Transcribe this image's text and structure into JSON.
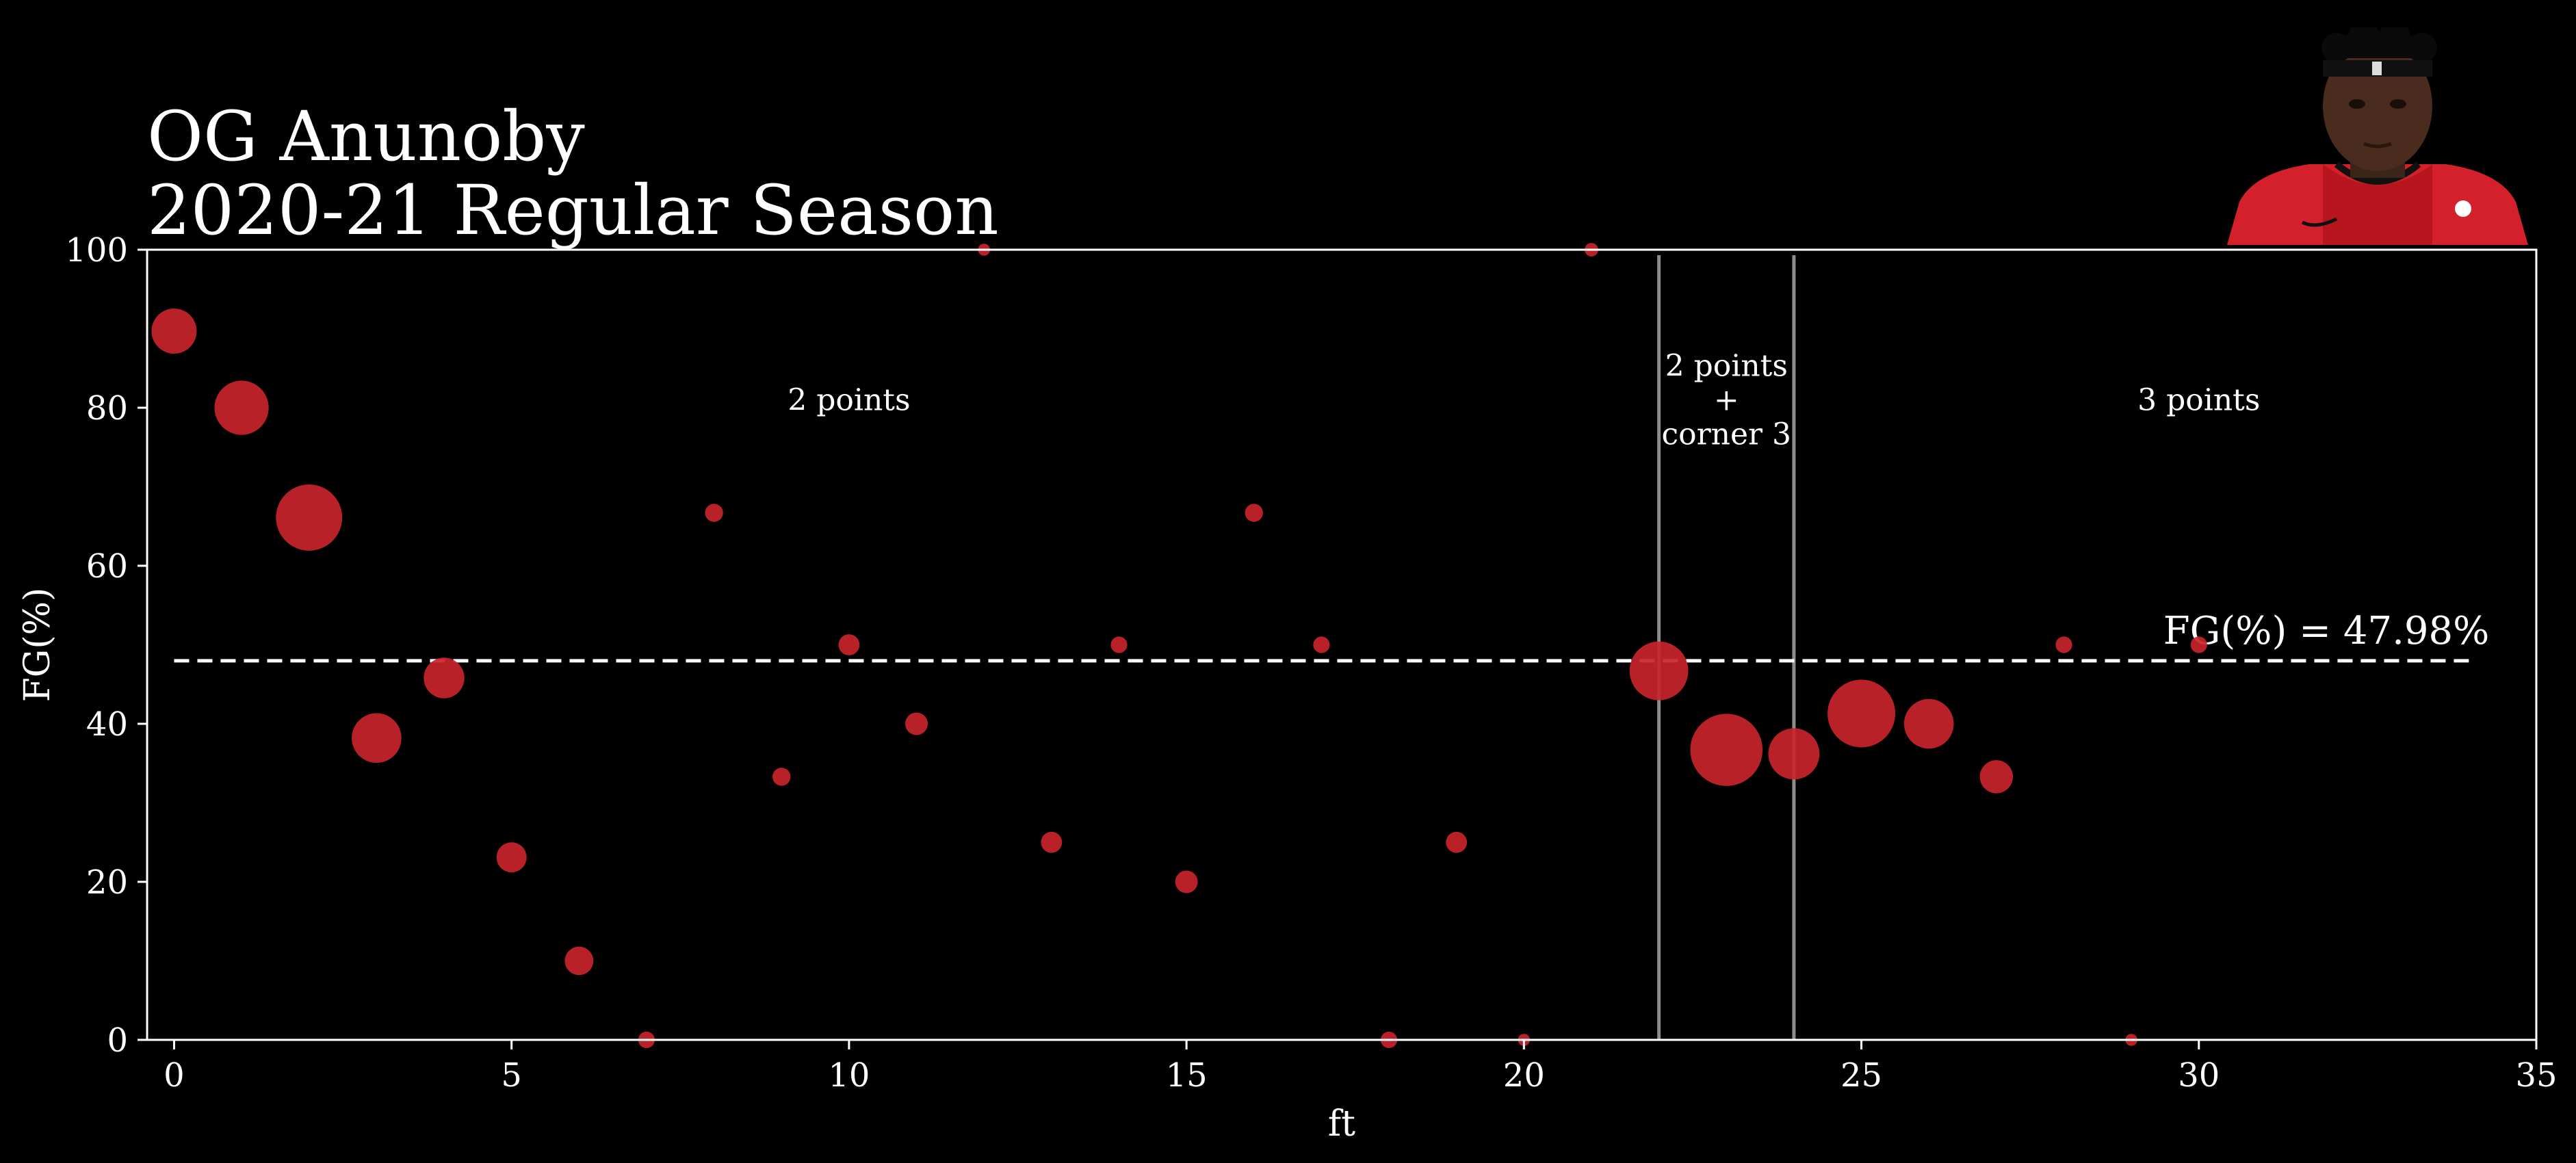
{
  "header": {
    "title_line1": "OG Anunoby",
    "title_line2": "2020-21 Regular Season"
  },
  "chart_data": {
    "type": "scatter",
    "title": "OG Anunoby 2020-21 Regular Season",
    "xlabel": "ft",
    "ylabel": "FG(%)",
    "xlim": [
      -0.4,
      35
    ],
    "ylim": [
      0,
      100
    ],
    "x_ticks": [
      0,
      5,
      10,
      15,
      20,
      25,
      30,
      35
    ],
    "y_ticks": [
      0,
      20,
      40,
      60,
      80,
      100
    ],
    "grid": false,
    "mean_line": {
      "value": 47.98,
      "label": "FG(%) = 47.98%",
      "x_range": [
        0,
        34
      ]
    },
    "zone_lines": [
      22,
      24
    ],
    "zone_labels": [
      {
        "x": 10,
        "y": 81,
        "lines": [
          "2 points"
        ]
      },
      {
        "x": 23,
        "y": 81,
        "lines": [
          "2 points",
          "+",
          "corner 3"
        ]
      },
      {
        "x": 30,
        "y": 81,
        "lines": [
          "3 points"
        ]
      }
    ],
    "marker_color": "#c8242b",
    "points": [
      {
        "x": 0,
        "y": 89.7,
        "s": 3
      },
      {
        "x": 1,
        "y": 80.0,
        "s": 3.6
      },
      {
        "x": 2,
        "y": 66.1,
        "s": 4.4
      },
      {
        "x": 3,
        "y": 38.2,
        "s": 3.3
      },
      {
        "x": 4,
        "y": 45.8,
        "s": 2.7
      },
      {
        "x": 5,
        "y": 23.1,
        "s": 2
      },
      {
        "x": 6,
        "y": 10.0,
        "s": 1.9
      },
      {
        "x": 7,
        "y": 0,
        "s": 1.1
      },
      {
        "x": 8,
        "y": 66.7,
        "s": 1.2
      },
      {
        "x": 9,
        "y": 33.3,
        "s": 1.2
      },
      {
        "x": 10,
        "y": 50.0,
        "s": 1.4
      },
      {
        "x": 11,
        "y": 40.0,
        "s": 1.5
      },
      {
        "x": 12,
        "y": 100,
        "s": 0.8
      },
      {
        "x": 13,
        "y": 25.0,
        "s": 1.4
      },
      {
        "x": 14,
        "y": 50.0,
        "s": 1.1
      },
      {
        "x": 15,
        "y": 20.0,
        "s": 1.5
      },
      {
        "x": 16,
        "y": 66.7,
        "s": 1.2
      },
      {
        "x": 17,
        "y": 50.0,
        "s": 1.1
      },
      {
        "x": 18,
        "y": 0,
        "s": 1.1
      },
      {
        "x": 19,
        "y": 25.0,
        "s": 1.4
      },
      {
        "x": 20,
        "y": 0,
        "s": 0.8
      },
      {
        "x": 21,
        "y": 100,
        "s": 0.9
      },
      {
        "x": 22,
        "y": 46.7,
        "s": 3.9
      },
      {
        "x": 23,
        "y": 36.7,
        "s": 4.8
      },
      {
        "x": 24,
        "y": 36.2,
        "s": 3.4
      },
      {
        "x": 25,
        "y": 41.3,
        "s": 4.5
      },
      {
        "x": 26,
        "y": 40.0,
        "s": 3.3
      },
      {
        "x": 27,
        "y": 33.3,
        "s": 2.2
      },
      {
        "x": 28,
        "y": 50.0,
        "s": 1.1
      },
      {
        "x": 29,
        "y": 0,
        "s": 0.8
      },
      {
        "x": 30,
        "y": 50.0,
        "s": 1.1
      }
    ]
  }
}
